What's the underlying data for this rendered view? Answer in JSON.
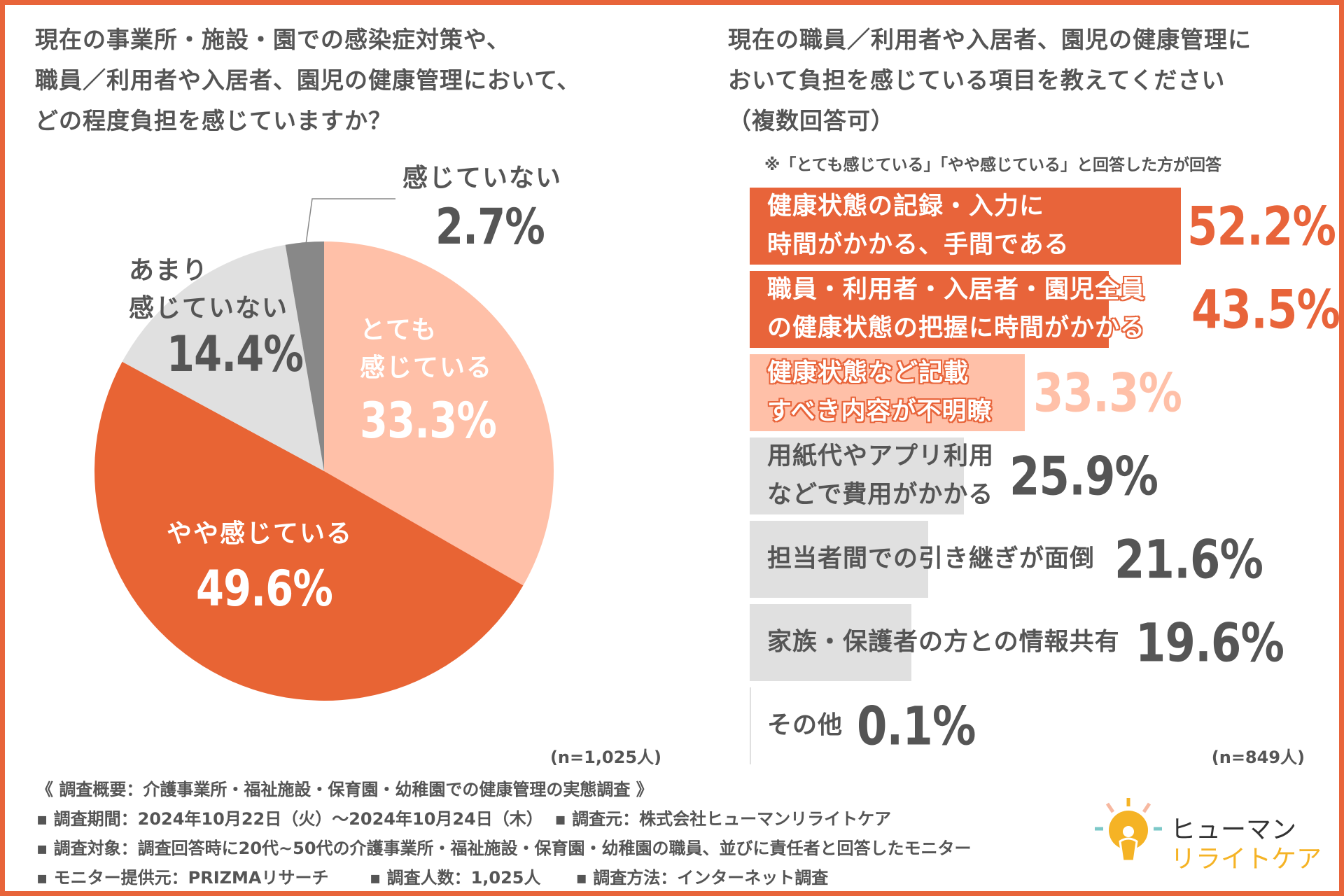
{
  "left_title": "現在の事業所・施設・園での感染症対策や、\n職員／利用者や入居者、園児の健康管理において、\nどの程度負担を感じていますか？",
  "right_title": "現在の職員／利用者や入居者、園児の健康管理に\nおいて負担を感じている項目を教えてください\n（複数回答可）",
  "right_note": "※「とても感じている」「やや感じている」と回答した方が回答",
  "chart_data": [
    {
      "type": "pie",
      "title": "どの程度負担を感じていますか？",
      "n_label": "(n=1,025人)",
      "start": "top",
      "direction": "clockwise",
      "slices": [
        {
          "label": "とても\n感じている",
          "value": 33.3,
          "value_label": "33.3%",
          "color": "#FFC0A8"
        },
        {
          "label": "やや感じている",
          "value": 49.6,
          "value_label": "49.6%",
          "color": "#E86434"
        },
        {
          "label": "あまり\n感じていない",
          "value": 14.4,
          "value_label": "14.4%",
          "color": "#E0E0E0"
        },
        {
          "label": "感じていない",
          "value": 2.7,
          "value_label": "2.7%",
          "color": "#888888"
        }
      ]
    },
    {
      "type": "bar",
      "orientation": "horizontal",
      "title": "負担を感じている項目（複数回答可）",
      "n_label": "(n=849人)",
      "unit": "%",
      "categories": [
        "健康状態の記録・入力に\n時間がかかる、手間である",
        "職員・利用者・入居者・園児全員\nの健康状態の把握に時間がかかる",
        "健康状態など記載\nすべき内容が不明瞭",
        "用紙代やアプリ利用\nなどで費用がかかる",
        "担当者間での引き継ぎが面倒",
        "家族・保護者の方との情報共有",
        "その他"
      ],
      "values": [
        52.2,
        43.5,
        33.3,
        25.9,
        21.6,
        19.6,
        0.1
      ],
      "value_labels": [
        "52.2%",
        "43.5%",
        "33.3%",
        "25.9%",
        "21.6%",
        "19.6%",
        "0.1%"
      ],
      "colors": [
        "#E8643A",
        "#E8643A",
        "#FFC0A8",
        "#E0E0E0",
        "#E0E0E0",
        "#E0E0E0",
        "#E0E0E0"
      ]
    }
  ],
  "footer": {
    "line1": "《 調査概要：介護事業所・福祉施設・保育園・幼稚園での健康管理の実態調査 》",
    "line2": "▪ 調査期間：2024年10月22日（火）～2024年10月24日（木）  ▪ 調査元：株式会社ヒューマンリライトケア",
    "line3": "▪ 調査対象：調査回答時に20代~50代の介護事業所・福祉施設・保育園・幼稚園の職員、並びに責任者と回答したモニター",
    "line4": "▪ モニター提供元：PRIZMAリサーチ       ▪ 調査人数：1,025人      ▪ 調査方法：インターネット調査"
  },
  "logo": {
    "line1": "ヒューマン",
    "line2": "リライトケア",
    "accent": "#F5B325"
  }
}
